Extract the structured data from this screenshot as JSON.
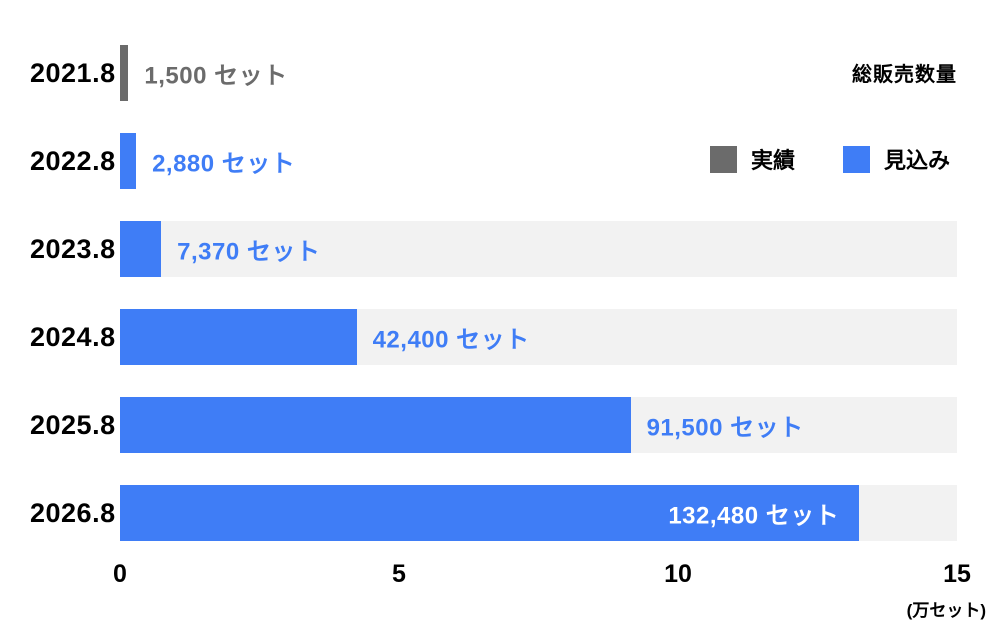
{
  "title": "総販売数量",
  "colors": {
    "actual": "#6b6b6b",
    "forecast": "#3f7df6",
    "band": "#f2f2f2",
    "label_actual": "#6b6b6b",
    "label_forecast": "#3f7df6",
    "label_inside": "#ffffff"
  },
  "legend": {
    "entries": [
      {
        "name": "実績",
        "color": "#6b6b6b"
      },
      {
        "name": "見込み",
        "color": "#3f7df6"
      }
    ],
    "position": "top-right"
  },
  "axis": {
    "tick_labels": [
      "0",
      "5",
      "10",
      "15"
    ],
    "unit": "(万セット)"
  },
  "chart_data": {
    "type": "bar",
    "orientation": "horizontal",
    "title": "総販売数量",
    "categories": [
      "2021.8",
      "2022.8",
      "2023.8",
      "2024.8",
      "2025.8",
      "2026.8"
    ],
    "values": [
      1500,
      2880,
      7370,
      42400,
      91500,
      132480
    ],
    "value_labels": [
      "1,500 セット",
      "2,880 セット",
      "7,370 セット",
      "42,400 セット",
      "91,500 セット",
      "132,480 セット"
    ],
    "series": [
      "実績",
      "見込み",
      "見込み",
      "見込み",
      "見込み",
      "見込み"
    ],
    "series_key": [
      "actual",
      "forecast",
      "forecast",
      "forecast",
      "forecast",
      "forecast"
    ],
    "row_band": [
      false,
      false,
      true,
      true,
      true,
      true
    ],
    "label_inside": [
      false,
      false,
      false,
      false,
      false,
      true
    ],
    "xlim": [
      0,
      150000
    ],
    "x_ticks": [
      0,
      50000,
      100000,
      150000
    ],
    "x_tick_labels": [
      "0",
      "5",
      "10",
      "15"
    ],
    "x_unit": "(万セット)",
    "grid": false,
    "legend_position": "top-right"
  }
}
